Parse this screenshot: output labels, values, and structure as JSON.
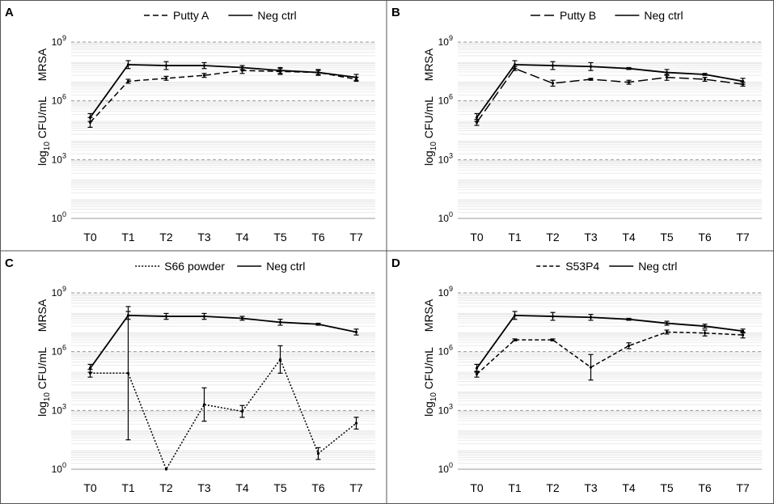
{
  "chart_data": [
    {
      "type": "line",
      "panel_label": "A",
      "ylabel_top": "MRSA",
      "ylabel_main": "log",
      "ylabel_sub": "10",
      "ylabel_rest": " CFU/mL",
      "y_scale": "log10",
      "ylim": [
        0,
        9
      ],
      "y_ticks": [
        {
          "exp": 0,
          "base": "10",
          "sup": "0"
        },
        {
          "exp": 3,
          "base": "10",
          "sup": "3"
        },
        {
          "exp": 6,
          "base": "10",
          "sup": "6"
        },
        {
          "exp": 9,
          "base": "10",
          "sup": "9"
        }
      ],
      "categories": [
        "T0",
        "T1",
        "T2",
        "T3",
        "T4",
        "T5",
        "T6",
        "T7"
      ],
      "legend_position": "top",
      "series": [
        {
          "name": "Putty A",
          "style": "dashed",
          "values": [
            4.9,
            7.0,
            7.15,
            7.3,
            7.55,
            7.5,
            7.45,
            7.1
          ],
          "err": [
            0.25,
            0.1,
            0.1,
            0.1,
            0.15,
            0.15,
            0.15,
            0.1
          ]
        },
        {
          "name": "Neg ctrl",
          "style": "solid",
          "values": [
            5.15,
            7.85,
            7.8,
            7.8,
            7.7,
            7.55,
            7.45,
            7.2
          ],
          "err": [
            0.2,
            0.2,
            0.2,
            0.15,
            0.1,
            0.15,
            0.1,
            0.15
          ]
        }
      ]
    },
    {
      "type": "line",
      "panel_label": "B",
      "ylabel_top": "MRSA",
      "ylabel_main": "log",
      "ylabel_sub": "10",
      "ylabel_rest": " CFU/mL",
      "y_scale": "log10",
      "ylim": [
        0,
        9
      ],
      "y_ticks": [
        {
          "exp": 0,
          "base": "10",
          "sup": "0"
        },
        {
          "exp": 3,
          "base": "10",
          "sup": "3"
        },
        {
          "exp": 6,
          "base": "10",
          "sup": "6"
        },
        {
          "exp": 9,
          "base": "10",
          "sup": "9"
        }
      ],
      "categories": [
        "T0",
        "T1",
        "T2",
        "T3",
        "T4",
        "T5",
        "T6",
        "T7"
      ],
      "legend_position": "top",
      "series": [
        {
          "name": "Putty B",
          "style": "longdash",
          "values": [
            4.9,
            7.65,
            6.9,
            7.1,
            6.95,
            7.2,
            7.1,
            6.85
          ],
          "err": [
            0.15,
            0.1,
            0.15,
            0.05,
            0.1,
            0.15,
            0.1,
            0.1
          ]
        },
        {
          "name": "Neg ctrl",
          "style": "solid",
          "values": [
            5.15,
            7.85,
            7.8,
            7.75,
            7.65,
            7.45,
            7.35,
            7.0
          ],
          "err": [
            0.2,
            0.2,
            0.2,
            0.2,
            0.05,
            0.15,
            0.05,
            0.15
          ]
        }
      ]
    },
    {
      "type": "line",
      "panel_label": "C",
      "ylabel_top": "MRSA",
      "ylabel_main": "log",
      "ylabel_sub": "10",
      "ylabel_rest": " CFU/mL",
      "y_scale": "log10",
      "ylim": [
        0,
        9
      ],
      "y_ticks": [
        {
          "exp": 0,
          "base": "10",
          "sup": "0"
        },
        {
          "exp": 3,
          "base": "10",
          "sup": "3"
        },
        {
          "exp": 6,
          "base": "10",
          "sup": "6"
        },
        {
          "exp": 9,
          "base": "10",
          "sup": "9"
        }
      ],
      "categories": [
        "T0",
        "T1",
        "T2",
        "T3",
        "T4",
        "T5",
        "T6",
        "T7"
      ],
      "legend_position": "top",
      "series": [
        {
          "name": "S66 powder",
          "style": "dotted",
          "values": [
            4.9,
            4.9,
            0.0,
            3.3,
            2.95,
            5.6,
            0.8,
            2.35
          ],
          "err": [
            0.2,
            3.4,
            0,
            0.85,
            0.3,
            0.7,
            0.3,
            0.3
          ]
        },
        {
          "name": "Neg ctrl",
          "style": "solid",
          "values": [
            5.15,
            7.85,
            7.8,
            7.8,
            7.7,
            7.5,
            7.4,
            7.0
          ],
          "err": [
            0.2,
            0.2,
            0.15,
            0.15,
            0.1,
            0.15,
            0.05,
            0.15
          ]
        }
      ]
    },
    {
      "type": "line",
      "panel_label": "D",
      "ylabel_top": "MRSA",
      "ylabel_main": "log",
      "ylabel_sub": "10",
      "ylabel_rest": " CFU/mL",
      "y_scale": "log10",
      "ylim": [
        0,
        9
      ],
      "y_ticks": [
        {
          "exp": 0,
          "base": "10",
          "sup": "0"
        },
        {
          "exp": 3,
          "base": "10",
          "sup": "3"
        },
        {
          "exp": 6,
          "base": "10",
          "sup": "6"
        },
        {
          "exp": 9,
          "base": "10",
          "sup": "9"
        }
      ],
      "categories": [
        "T0",
        "T1",
        "T2",
        "T3",
        "T4",
        "T5",
        "T6",
        "T7"
      ],
      "legend_position": "top",
      "series": [
        {
          "name": "S53P4",
          "style": "shortdash",
          "values": [
            4.85,
            6.6,
            6.6,
            5.2,
            6.3,
            7.0,
            6.95,
            6.85
          ],
          "err": [
            0.15,
            0.05,
            0.05,
            0.65,
            0.15,
            0.1,
            0.15,
            0.15
          ]
        },
        {
          "name": "Neg ctrl",
          "style": "solid",
          "values": [
            5.15,
            7.85,
            7.8,
            7.75,
            7.65,
            7.45,
            7.3,
            7.05
          ],
          "err": [
            0.2,
            0.2,
            0.2,
            0.15,
            0.05,
            0.1,
            0.1,
            0.1
          ]
        }
      ]
    }
  ]
}
